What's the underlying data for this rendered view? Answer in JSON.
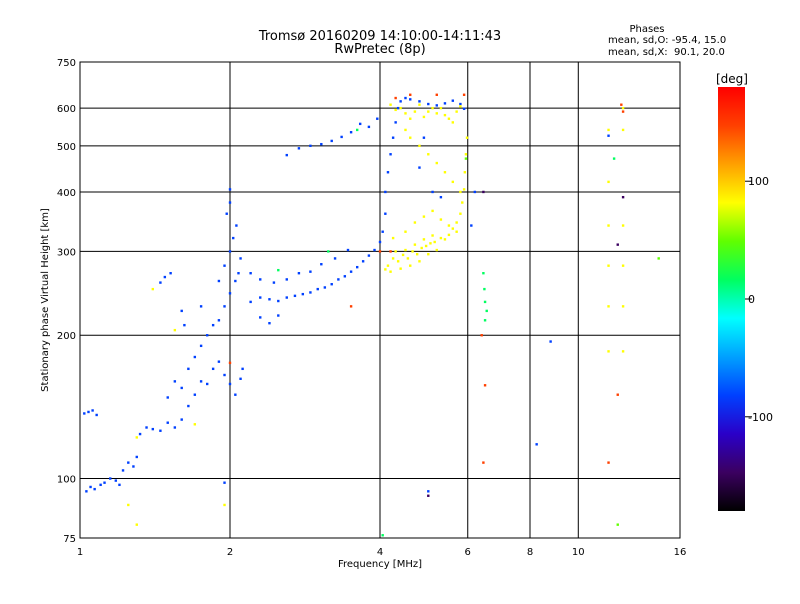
{
  "chart_data": {
    "type": "scatter",
    "title": "Tromsø 20160209 14:10:00-14:11:43",
    "subtitle": "RwPretec (8p)",
    "xlabel": "Frequency [MHz]",
    "ylabel": "Stationary phase Virtual Height [km]",
    "x_scale": "log",
    "y_scale": "log",
    "xlim": [
      1,
      16
    ],
    "ylim": [
      75,
      750
    ],
    "x_ticks": [
      1,
      2,
      4,
      6,
      8,
      10,
      16
    ],
    "x_tick_labels": [
      "1",
      "2",
      "4",
      "6",
      "8",
      "10",
      "16"
    ],
    "y_ticks": [
      75,
      100,
      200,
      300,
      400,
      500,
      600,
      750
    ],
    "y_tick_labels": [
      "75",
      "100",
      "200",
      "300",
      "400",
      "500",
      "600",
      "750"
    ],
    "grid": true,
    "stats": {
      "heading": "Phases",
      "o_line": "mean, sd,O: -95.4, 15.0",
      "x_line": "mean, sd,X:  90.1, 20.0"
    },
    "colorbar": {
      "title": "[deg]",
      "range": [
        -180,
        180
      ],
      "tick_labels": [
        "100",
        "0",
        "-100"
      ],
      "tick_values": [
        100,
        0,
        -100
      ],
      "colors": [
        "#000000",
        "#3b0060",
        "#2a00c8",
        "#0040ff",
        "#00a0ff",
        "#00ffff",
        "#00ff60",
        "#60ff00",
        "#ffff00",
        "#ffa000",
        "#ff4000",
        "#ff0000"
      ]
    },
    "point_groups": [
      {
        "name": "O-low",
        "phase": -95,
        "points": [
          [
            1.02,
            137
          ],
          [
            1.04,
            138
          ],
          [
            1.06,
            139
          ],
          [
            1.08,
            136
          ],
          [
            1.03,
            94
          ],
          [
            1.05,
            96
          ],
          [
            1.07,
            95
          ],
          [
            1.1,
            97
          ],
          [
            1.12,
            98
          ],
          [
            1.15,
            100
          ],
          [
            1.18,
            99
          ],
          [
            1.2,
            97
          ],
          [
            1.22,
            104
          ],
          [
            1.25,
            108
          ],
          [
            1.28,
            106
          ],
          [
            1.3,
            111
          ],
          [
            1.32,
            124
          ],
          [
            1.36,
            128
          ],
          [
            1.4,
            127
          ],
          [
            1.45,
            126
          ],
          [
            1.5,
            131
          ],
          [
            1.55,
            128
          ],
          [
            1.6,
            133
          ],
          [
            1.65,
            142
          ],
          [
            1.7,
            150
          ],
          [
            1.75,
            160
          ],
          [
            1.8,
            158
          ],
          [
            1.85,
            170
          ],
          [
            1.9,
            176
          ],
          [
            1.95,
            165
          ],
          [
            2.0,
            158
          ],
          [
            2.05,
            150
          ],
          [
            2.1,
            162
          ],
          [
            2.12,
            170
          ],
          [
            1.5,
            148
          ],
          [
            1.55,
            160
          ],
          [
            1.6,
            155
          ],
          [
            1.65,
            170
          ],
          [
            1.7,
            180
          ],
          [
            1.75,
            190
          ],
          [
            1.8,
            200
          ],
          [
            1.85,
            210
          ],
          [
            1.9,
            215
          ],
          [
            1.95,
            230
          ],
          [
            2.0,
            245
          ],
          [
            2.05,
            260
          ],
          [
            2.08,
            270
          ],
          [
            2.1,
            290
          ],
          [
            1.9,
            260
          ],
          [
            1.95,
            280
          ],
          [
            2.0,
            300
          ],
          [
            2.03,
            320
          ],
          [
            2.06,
            340
          ],
          [
            1.97,
            360
          ],
          [
            2.0,
            380
          ],
          [
            2.0,
            405
          ],
          [
            1.48,
            265
          ],
          [
            1.52,
            270
          ],
          [
            1.6,
            225
          ],
          [
            1.62,
            210
          ],
          [
            1.75,
            230
          ],
          [
            2.2,
            235
          ],
          [
            2.3,
            240
          ],
          [
            2.4,
            238
          ],
          [
            2.5,
            236
          ],
          [
            2.6,
            240
          ],
          [
            2.7,
            242
          ],
          [
            2.8,
            244
          ],
          [
            2.9,
            246
          ],
          [
            3.0,
            250
          ],
          [
            3.1,
            252
          ],
          [
            3.2,
            256
          ],
          [
            3.3,
            262
          ],
          [
            3.4,
            266
          ],
          [
            3.5,
            272
          ],
          [
            3.6,
            278
          ],
          [
            3.7,
            286
          ],
          [
            3.8,
            294
          ],
          [
            3.9,
            302
          ],
          [
            4.0,
            314
          ],
          [
            4.05,
            330
          ],
          [
            4.1,
            360
          ],
          [
            4.1,
            400
          ],
          [
            4.15,
            440
          ],
          [
            4.2,
            480
          ],
          [
            4.25,
            520
          ],
          [
            4.3,
            560
          ],
          [
            4.35,
            600
          ],
          [
            4.4,
            620
          ],
          [
            4.5,
            630
          ],
          [
            4.6,
            626
          ],
          [
            4.8,
            620
          ],
          [
            5.0,
            612
          ],
          [
            5.2,
            608
          ],
          [
            5.4,
            614
          ],
          [
            5.6,
            622
          ],
          [
            5.8,
            612
          ],
          [
            5.9,
            598
          ],
          [
            2.2,
            270
          ],
          [
            2.3,
            262
          ],
          [
            2.45,
            258
          ],
          [
            2.6,
            262
          ],
          [
            2.75,
            270
          ],
          [
            2.9,
            272
          ],
          [
            3.05,
            282
          ],
          [
            3.25,
            290
          ],
          [
            3.45,
            302
          ],
          [
            2.6,
            478
          ],
          [
            2.75,
            494
          ],
          [
            2.9,
            500
          ],
          [
            3.05,
            504
          ],
          [
            3.2,
            512
          ],
          [
            3.35,
            522
          ],
          [
            3.5,
            534
          ],
          [
            3.65,
            556
          ],
          [
            3.8,
            548
          ],
          [
            3.95,
            570
          ],
          [
            1.95,
            98
          ],
          [
            1.45,
            258
          ],
          [
            8.25,
            118
          ],
          [
            8.8,
            194
          ],
          [
            6.2,
            400
          ],
          [
            6.1,
            340
          ],
          [
            11.5,
            525
          ],
          [
            5.0,
            94
          ],
          [
            2.3,
            218
          ],
          [
            2.4,
            212
          ],
          [
            2.5,
            220
          ],
          [
            4.9,
            520
          ],
          [
            4.8,
            450
          ],
          [
            5.1,
            400
          ],
          [
            5.3,
            390
          ]
        ]
      },
      {
        "name": "X-high",
        "phase": 90,
        "points": [
          [
            4.1,
            275
          ],
          [
            4.15,
            280
          ],
          [
            4.2,
            272
          ],
          [
            4.25,
            290
          ],
          [
            4.3,
            300
          ],
          [
            4.35,
            286
          ],
          [
            4.4,
            276
          ],
          [
            4.45,
            295
          ],
          [
            4.5,
            302
          ],
          [
            4.55,
            290
          ],
          [
            4.6,
            280
          ],
          [
            4.65,
            300
          ],
          [
            4.7,
            310
          ],
          [
            4.75,
            296
          ],
          [
            4.8,
            286
          ],
          [
            4.85,
            305
          ],
          [
            4.9,
            318
          ],
          [
            4.95,
            308
          ],
          [
            5.0,
            296
          ],
          [
            5.05,
            312
          ],
          [
            5.1,
            324
          ],
          [
            5.15,
            314
          ],
          [
            5.2,
            302
          ],
          [
            5.3,
            320
          ],
          [
            5.4,
            318
          ],
          [
            5.5,
            325
          ],
          [
            5.6,
            335
          ],
          [
            5.7,
            345
          ],
          [
            5.8,
            360
          ],
          [
            5.85,
            380
          ],
          [
            5.9,
            405
          ],
          [
            5.92,
            440
          ],
          [
            5.95,
            480
          ],
          [
            5.98,
            520
          ],
          [
            4.2,
            610
          ],
          [
            4.3,
            595
          ],
          [
            4.4,
            600
          ],
          [
            4.5,
            585
          ],
          [
            4.6,
            570
          ],
          [
            4.7,
            590
          ],
          [
            4.8,
            610
          ],
          [
            4.9,
            575
          ],
          [
            5.0,
            590
          ],
          [
            5.1,
            600
          ],
          [
            5.2,
            585
          ],
          [
            5.3,
            600
          ],
          [
            5.4,
            580
          ],
          [
            5.5,
            570
          ],
          [
            5.6,
            560
          ],
          [
            5.7,
            590
          ],
          [
            5.8,
            605
          ],
          [
            4.5,
            540
          ],
          [
            4.6,
            520
          ],
          [
            4.8,
            500
          ],
          [
            5.0,
            480
          ],
          [
            5.2,
            460
          ],
          [
            5.4,
            440
          ],
          [
            5.6,
            420
          ],
          [
            5.8,
            400
          ],
          [
            4.25,
            320
          ],
          [
            4.5,
            330
          ],
          [
            4.7,
            345
          ],
          [
            4.9,
            355
          ],
          [
            5.1,
            365
          ],
          [
            5.3,
            350
          ],
          [
            5.5,
            340
          ],
          [
            5.7,
            330
          ],
          [
            11.5,
            185
          ],
          [
            11.5,
            230
          ],
          [
            11.5,
            280
          ],
          [
            11.5,
            340
          ],
          [
            11.5,
            420
          ],
          [
            11.5,
            540
          ],
          [
            12.3,
            185
          ],
          [
            12.3,
            230
          ],
          [
            12.3,
            280
          ],
          [
            12.3,
            340
          ],
          [
            12.3,
            540
          ],
          [
            12.3,
            600
          ],
          [
            1.7,
            130
          ],
          [
            1.3,
            122
          ],
          [
            1.4,
            250
          ],
          [
            1.95,
            88
          ],
          [
            1.3,
            80
          ],
          [
            1.25,
            88
          ],
          [
            1.55,
            205
          ]
        ]
      },
      {
        "name": "X-orange",
        "phase": 140,
        "points": [
          [
            4.3,
            630
          ],
          [
            4.6,
            640
          ],
          [
            5.2,
            640
          ],
          [
            5.9,
            640
          ],
          [
            6.4,
            200
          ],
          [
            6.5,
            157
          ],
          [
            6.45,
            108
          ],
          [
            11.5,
            108
          ],
          [
            12.2,
            610
          ],
          [
            12.3,
            590
          ],
          [
            12.0,
            150
          ],
          [
            2.0,
            175
          ],
          [
            3.5,
            230
          ],
          [
            4.0,
            300
          ],
          [
            4.2,
            300
          ]
        ]
      },
      {
        "name": "cyan",
        "phase": 15,
        "points": [
          [
            6.45,
            270
          ],
          [
            6.48,
            250
          ],
          [
            6.5,
            235
          ],
          [
            6.55,
            225
          ],
          [
            6.5,
            215
          ],
          [
            11.8,
            470
          ],
          [
            4.05,
            76
          ],
          [
            2.5,
            274
          ],
          [
            3.15,
            300
          ],
          [
            3.6,
            540
          ]
        ]
      },
      {
        "name": "green",
        "phase": 60,
        "points": [
          [
            12.0,
            80
          ],
          [
            14.5,
            290
          ],
          [
            5.95,
            470
          ]
        ]
      },
      {
        "name": "purple",
        "phase": -150,
        "points": [
          [
            12.0,
            310
          ],
          [
            12.3,
            390
          ],
          [
            6.45,
            400
          ],
          [
            5.0,
            92
          ]
        ]
      }
    ]
  }
}
